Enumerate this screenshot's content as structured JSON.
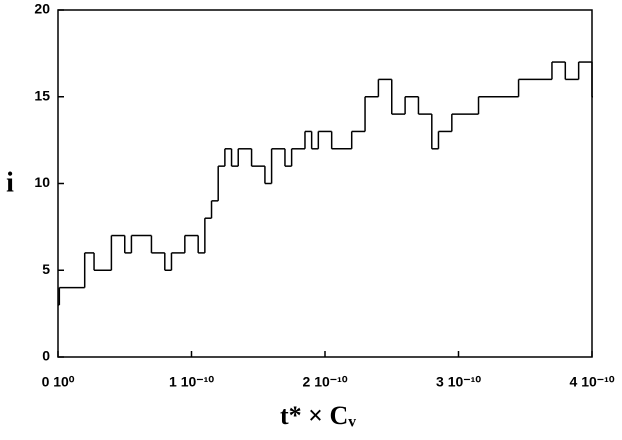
{
  "chart_data": {
    "type": "line",
    "step": "post",
    "color": "#000000",
    "y_label": "i",
    "x_label": "t* × Cᵥ",
    "xlim": [
      0,
      4e-10
    ],
    "ylim": [
      0,
      20
    ],
    "xticks": [
      {
        "value": 0,
        "label": "0 10⁰"
      },
      {
        "value": 1e-10,
        "label": "1 10⁻¹⁰"
      },
      {
        "value": 2e-10,
        "label": "2 10⁻¹⁰"
      },
      {
        "value": 3e-10,
        "label": "3 10⁻¹⁰"
      },
      {
        "value": 4e-10,
        "label": "4 10⁻¹⁰"
      }
    ],
    "yticks": [
      0,
      5,
      10,
      15,
      20
    ],
    "x": [
      0,
      1e-12,
      2e-11,
      2.7e-11,
      4e-11,
      5e-11,
      5.5e-11,
      7e-11,
      8e-11,
      8.5e-11,
      9.5e-11,
      1.05e-10,
      1.1e-10,
      1.15e-10,
      1.2e-10,
      1.25e-10,
      1.3e-10,
      1.35e-10,
      1.45e-10,
      1.55e-10,
      1.6e-10,
      1.7e-10,
      1.75e-10,
      1.85e-10,
      1.9e-10,
      1.95e-10,
      2.05e-10,
      2.2e-10,
      2.3e-10,
      2.4e-10,
      2.5e-10,
      2.6e-10,
      2.7e-10,
      2.8e-10,
      2.85e-10,
      2.95e-10,
      3.15e-10,
      3.45e-10,
      3.7e-10,
      3.8e-10,
      3.9e-10,
      4e-10
    ],
    "values": [
      3,
      4,
      6,
      5,
      7,
      6,
      7,
      6,
      5,
      6,
      7,
      6,
      8,
      9,
      11,
      12,
      11,
      12,
      11,
      10,
      12,
      11,
      12,
      13,
      12,
      13,
      12,
      13,
      15,
      16,
      14,
      15,
      14,
      12,
      13,
      14,
      15,
      16,
      17,
      16,
      17,
      15
    ]
  }
}
